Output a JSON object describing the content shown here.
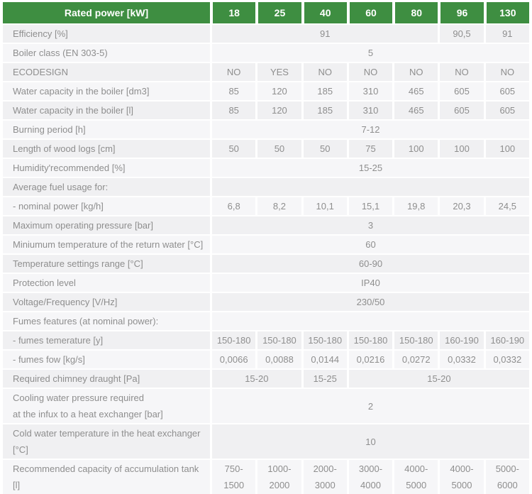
{
  "colors": {
    "header_bg": "#3e8e41",
    "header_text": "#ffffff",
    "text": "#8e8e8e",
    "stripe_odd": "#f0f0f2",
    "stripe_even": "#f6f6f8"
  },
  "header": {
    "label": "Rated power [kW]",
    "columns": [
      "18",
      "25",
      "40",
      "60",
      "80",
      "96",
      "130"
    ]
  },
  "rows": [
    {
      "label": "Efficiency [%]",
      "cells": [
        {
          "span": 5,
          "text": "91"
        },
        {
          "span": 1,
          "text": "90,5"
        },
        {
          "span": 1,
          "text": "91"
        }
      ]
    },
    {
      "label": "Boiler class (EN 303-5)",
      "cells": [
        {
          "span": 7,
          "text": "5"
        }
      ]
    },
    {
      "label": "ECODESIGN",
      "cells": [
        {
          "span": 1,
          "text": "NO"
        },
        {
          "span": 1,
          "text": "YES"
        },
        {
          "span": 1,
          "text": "NO"
        },
        {
          "span": 1,
          "text": "NO"
        },
        {
          "span": 1,
          "text": "NO"
        },
        {
          "span": 1,
          "text": "NO"
        },
        {
          "span": 1,
          "text": "NO"
        }
      ]
    },
    {
      "label": "Water capacity in the boiler [dm3]",
      "cells": [
        {
          "span": 1,
          "text": "85"
        },
        {
          "span": 1,
          "text": "120"
        },
        {
          "span": 1,
          "text": "185"
        },
        {
          "span": 1,
          "text": "310"
        },
        {
          "span": 1,
          "text": "465"
        },
        {
          "span": 1,
          "text": "605"
        },
        {
          "span": 1,
          "text": "605"
        }
      ]
    },
    {
      "label": "Water capacity in the boiler [l]",
      "cells": [
        {
          "span": 1,
          "text": "85"
        },
        {
          "span": 1,
          "text": "120"
        },
        {
          "span": 1,
          "text": "185"
        },
        {
          "span": 1,
          "text": "310"
        },
        {
          "span": 1,
          "text": "465"
        },
        {
          "span": 1,
          "text": "605"
        },
        {
          "span": 1,
          "text": "605"
        }
      ]
    },
    {
      "label": "Burning period [h]",
      "cells": [
        {
          "span": 7,
          "text": "7-12"
        }
      ]
    },
    {
      "label": "Length of wood logs [cm]",
      "cells": [
        {
          "span": 1,
          "text": "50"
        },
        {
          "span": 1,
          "text": "50"
        },
        {
          "span": 1,
          "text": "50"
        },
        {
          "span": 1,
          "text": "75"
        },
        {
          "span": 1,
          "text": "100"
        },
        {
          "span": 1,
          "text": "100"
        },
        {
          "span": 1,
          "text": "100"
        }
      ]
    },
    {
      "label": "Humidity'recommended [%]",
      "cells": [
        {
          "span": 7,
          "text": "15-25"
        }
      ]
    },
    {
      "label": "Average fuel usage for:",
      "cells": [
        {
          "span": 7,
          "text": ""
        }
      ]
    },
    {
      "label": "- nominal power [kg/h]",
      "cells": [
        {
          "span": 1,
          "text": "6,8"
        },
        {
          "span": 1,
          "text": "8,2"
        },
        {
          "span": 1,
          "text": "10,1"
        },
        {
          "span": 1,
          "text": "15,1"
        },
        {
          "span": 1,
          "text": "19,8"
        },
        {
          "span": 1,
          "text": "20,3"
        },
        {
          "span": 1,
          "text": "24,5"
        }
      ]
    },
    {
      "label": "Maximum operating pressure [bar]",
      "cells": [
        {
          "span": 7,
          "text": "3"
        }
      ]
    },
    {
      "label": "Miniumum temperature of the return water [°C]",
      "cells": [
        {
          "span": 7,
          "text": "60"
        }
      ]
    },
    {
      "label": "Temperature settings range [°C]",
      "cells": [
        {
          "span": 7,
          "text": "60-90"
        }
      ]
    },
    {
      "label": "Protection level",
      "cells": [
        {
          "span": 7,
          "text": "IP40"
        }
      ]
    },
    {
      "label": "Voltage/Frequency [V/Hz]",
      "cells": [
        {
          "span": 7,
          "text": "230/50"
        }
      ]
    },
    {
      "label": "Fumes features (at nominal power):",
      "cells": [
        {
          "span": 7,
          "text": ""
        }
      ]
    },
    {
      "label": "- fumes temerature [y]",
      "cells": [
        {
          "span": 1,
          "text": "150-180"
        },
        {
          "span": 1,
          "text": "150-180"
        },
        {
          "span": 1,
          "text": "150-180"
        },
        {
          "span": 1,
          "text": "150-180"
        },
        {
          "span": 1,
          "text": "150-180"
        },
        {
          "span": 1,
          "text": "160-190"
        },
        {
          "span": 1,
          "text": "160-190"
        }
      ]
    },
    {
      "label": "- fumes fow [kg/s]",
      "cells": [
        {
          "span": 1,
          "text": "0,0066"
        },
        {
          "span": 1,
          "text": "0,0088"
        },
        {
          "span": 1,
          "text": "0,0144"
        },
        {
          "span": 1,
          "text": "0,0216"
        },
        {
          "span": 1,
          "text": "0,0272"
        },
        {
          "span": 1,
          "text": "0,0332"
        },
        {
          "span": 1,
          "text": "0,0332"
        }
      ]
    },
    {
      "label": "Required chimney draught [Pa]",
      "cells": [
        {
          "span": 2,
          "text": "15-20"
        },
        {
          "span": 1,
          "text": "15-25"
        },
        {
          "span": 4,
          "text": "15-20"
        }
      ]
    },
    {
      "label": "Cooling water pressure required\nat the infux to a heat exchanger [bar]",
      "cells": [
        {
          "span": 7,
          "text": "2"
        }
      ]
    },
    {
      "label": "Cold water temperature in the heat exchanger\n[°C]",
      "cells": [
        {
          "span": 7,
          "text": "10"
        }
      ]
    },
    {
      "label": "Recommended capacity of accumulation tank [l]",
      "cells": [
        {
          "span": 1,
          "text": "750-\n1500"
        },
        {
          "span": 1,
          "text": "1000-\n2000"
        },
        {
          "span": 1,
          "text": "2000-\n3000"
        },
        {
          "span": 1,
          "text": "3000-\n4000"
        },
        {
          "span": 1,
          "text": "4000-\n5000"
        },
        {
          "span": 1,
          "text": "4000-\n5000"
        },
        {
          "span": 1,
          "text": "5000-\n6000"
        }
      ]
    }
  ]
}
